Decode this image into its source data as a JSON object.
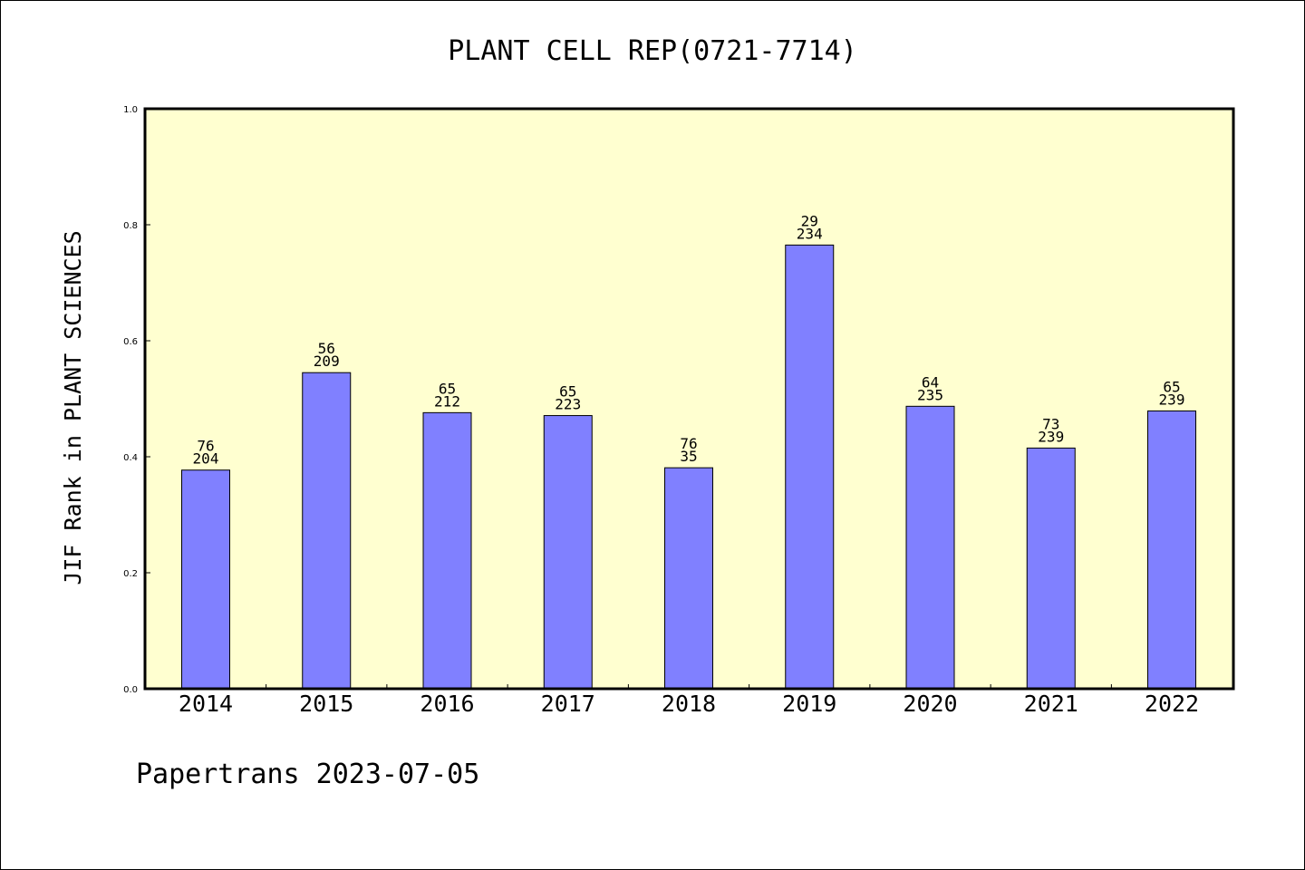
{
  "chart_data": {
    "type": "bar",
    "title": "PLANT CELL REP(0721-7714)",
    "xlabel": "",
    "ylabel": "JIF Rank in PLANT SCIENCES",
    "ylim": [
      0,
      1.0
    ],
    "yticks": [
      "0.0",
      "0.2",
      "0.4",
      "0.6",
      "0.8",
      "1.0"
    ],
    "grid": false,
    "plot_background": "#FFFFD0",
    "bar_color": "#8080FF",
    "categories": [
      "2014",
      "2015",
      "2016",
      "2017",
      "2018",
      "2019",
      "2020",
      "2021",
      "2022"
    ],
    "values": [
      0.377,
      0.545,
      0.476,
      0.471,
      0.381,
      0.765,
      0.487,
      0.415,
      0.479
    ],
    "data_labels": [
      {
        "top": "76",
        "bottom": "204"
      },
      {
        "top": "56",
        "bottom": "209"
      },
      {
        "top": "65",
        "bottom": "212"
      },
      {
        "top": "65",
        "bottom": "223"
      },
      {
        "top": "76",
        "bottom": "35"
      },
      {
        "top": "29",
        "bottom": "234"
      },
      {
        "top": "64",
        "bottom": "235"
      },
      {
        "top": "73",
        "bottom": "239"
      },
      {
        "top": "65",
        "bottom": "239"
      }
    ]
  },
  "footer": "Papertrans 2023-07-05"
}
